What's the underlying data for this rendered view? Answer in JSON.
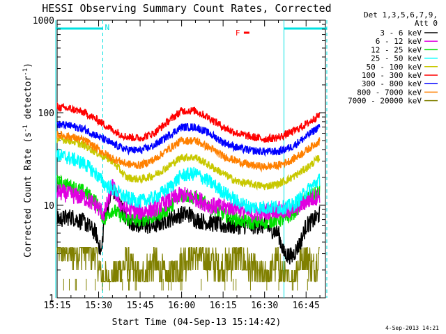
{
  "chart_data": {
    "type": "line",
    "title": "HESSI Observing Summary Count Rates, Corrected",
    "xlabel": "Start Time (04-Sep-13 15:14:42)",
    "ylabel_parts": [
      "Corrected Count Rate (s",
      "-1",
      " detector",
      "-1",
      ")"
    ],
    "yscale": "log",
    "ylim": [
      1,
      1000
    ],
    "xlim_minutes": [
      0,
      97
    ],
    "x_ticks": [
      {
        "minute": 0,
        "label": "15:15"
      },
      {
        "minute": 15,
        "label": "15:30"
      },
      {
        "minute": 30,
        "label": "15:45"
      },
      {
        "minute": 45,
        "label": "16:00"
      },
      {
        "minute": 60,
        "label": "16:15"
      },
      {
        "minute": 75,
        "label": "16:30"
      },
      {
        "minute": 90,
        "label": "16:45"
      }
    ],
    "y_ticks": [
      {
        "value": 1,
        "label": "1"
      },
      {
        "value": 10,
        "label": "10"
      },
      {
        "value": 100,
        "label": "100"
      },
      {
        "value": 1000,
        "label": "1000"
      }
    ],
    "legend_header": [
      "Det 1,3,5,6,7,9,",
      "Att 0"
    ],
    "legend_placement": "right",
    "grid": false,
    "footer_timestamp": "4-Sep-2013 14:21",
    "annotations": [
      {
        "text": "N",
        "color": "#00e0e0"
      },
      {
        "text": "F",
        "color": "#ff0000"
      }
    ],
    "night_intervals_minutes": [
      [
        -0.5,
        16.5
      ],
      [
        82,
        97.5
      ]
    ],
    "flag_bar_F_minutes": [
      67.5,
      69.5
    ],
    "series": [
      {
        "name": "3 - 6 keV",
        "color": "#000000",
        "x": [
          0,
          5,
          10,
          14,
          16,
          17,
          20,
          23,
          25,
          30,
          35,
          40,
          45,
          48,
          50,
          55,
          60,
          65,
          70,
          75,
          80,
          82,
          85,
          88,
          90,
          93,
          95
        ],
        "y": [
          7,
          7.5,
          6.5,
          5,
          3,
          7,
          15,
          10,
          7,
          6,
          6,
          7,
          8,
          8,
          7,
          6.5,
          6,
          6,
          6,
          6,
          5,
          3,
          2.8,
          4,
          6,
          7,
          8
        ]
      },
      {
        "name": "6 - 12 keV",
        "color": "#e000e0",
        "x": [
          0,
          5,
          10,
          14,
          17,
          20,
          23,
          25,
          30,
          35,
          40,
          45,
          50,
          55,
          60,
          65,
          70,
          75,
          80,
          82,
          85,
          88,
          90,
          93,
          95
        ],
        "y": [
          14,
          13,
          12,
          10,
          8,
          16,
          10,
          9,
          8.5,
          9,
          11,
          13,
          12,
          10,
          9.5,
          9.5,
          8,
          8.5,
          9,
          8.5,
          9,
          10,
          11,
          12,
          13
        ]
      },
      {
        "name": "12 - 25 keV",
        "color": "#00e000",
        "x": [
          0,
          5,
          10,
          14,
          17,
          20,
          25,
          30,
          35,
          40,
          45,
          50,
          55,
          60,
          65,
          70,
          75,
          80,
          82,
          85,
          88,
          90,
          93,
          95
        ],
        "y": [
          18,
          16,
          14,
          11,
          7,
          9,
          7,
          7,
          7.5,
          9,
          13,
          12,
          10,
          8,
          7,
          6.5,
          6.5,
          7,
          7,
          8,
          10,
          12,
          13,
          14
        ]
      },
      {
        "name": "25 - 50 keV",
        "color": "#00ffff",
        "x": [
          0,
          5,
          10,
          14,
          17,
          20,
          25,
          30,
          35,
          40,
          45,
          50,
          55,
          60,
          65,
          70,
          75,
          80,
          82,
          85,
          88,
          90,
          93,
          95
        ],
        "y": [
          35,
          32,
          28,
          22,
          17,
          15,
          12,
          11,
          12,
          15,
          21,
          22,
          18,
          14,
          11,
          9.5,
          9.5,
          9.5,
          9.5,
          10,
          12,
          14,
          17,
          19
        ]
      },
      {
        "name": "50 - 100 keV",
        "color": "#c8c800",
        "x": [
          0,
          5,
          10,
          15,
          20,
          25,
          30,
          35,
          40,
          45,
          50,
          55,
          60,
          65,
          70,
          75,
          80,
          85,
          90,
          95
        ],
        "y": [
          52,
          50,
          44,
          36,
          30,
          20,
          19,
          21,
          26,
          33,
          33,
          27,
          22,
          18,
          17,
          16,
          17,
          20,
          25,
          33
        ]
      },
      {
        "name": "100 - 300 keV",
        "color": "#ff0000",
        "x": [
          0,
          5,
          10,
          15,
          20,
          25,
          30,
          35,
          40,
          45,
          50,
          55,
          60,
          65,
          70,
          75,
          80,
          85,
          90,
          95
        ],
        "y": [
          115,
          110,
          100,
          82,
          65,
          55,
          53,
          60,
          80,
          105,
          105,
          88,
          70,
          60,
          55,
          52,
          54,
          62,
          75,
          95
        ]
      },
      {
        "name": "300 - 800 keV",
        "color": "#0000ff",
        "x": [
          0,
          5,
          10,
          15,
          20,
          25,
          30,
          35,
          40,
          45,
          50,
          55,
          60,
          65,
          70,
          75,
          80,
          85,
          90,
          95
        ],
        "y": [
          75,
          72,
          66,
          55,
          46,
          40,
          39,
          44,
          56,
          70,
          70,
          60,
          48,
          42,
          39,
          38,
          38,
          43,
          55,
          72
        ]
      },
      {
        "name": "800 - 7000 keV",
        "color": "#ff8000",
        "x": [
          0,
          5,
          10,
          15,
          20,
          25,
          30,
          35,
          40,
          45,
          50,
          55,
          60,
          65,
          70,
          75,
          80,
          85,
          90,
          95
        ],
        "y": [
          58,
          55,
          50,
          40,
          32,
          28,
          27,
          31,
          40,
          50,
          50,
          42,
          34,
          30,
          27,
          26,
          27,
          31,
          39,
          50
        ]
      },
      {
        "name": "7000 - 20000 keV",
        "color": "#808000",
        "x": [
          0,
          5,
          10,
          14,
          16,
          20,
          25,
          30,
          35,
          40,
          45,
          50,
          55,
          60,
          65,
          70,
          75,
          80,
          82,
          85,
          88,
          90,
          93,
          95
        ],
        "y": [
          3.5,
          3,
          3.5,
          3,
          1.5,
          1.5,
          2.5,
          1.5,
          2.5,
          1.5,
          2.5,
          3,
          2.5,
          2,
          3,
          2,
          1.5,
          2.5,
          1.5,
          1.5,
          2.5,
          3,
          2,
          3.5
        ]
      }
    ]
  }
}
